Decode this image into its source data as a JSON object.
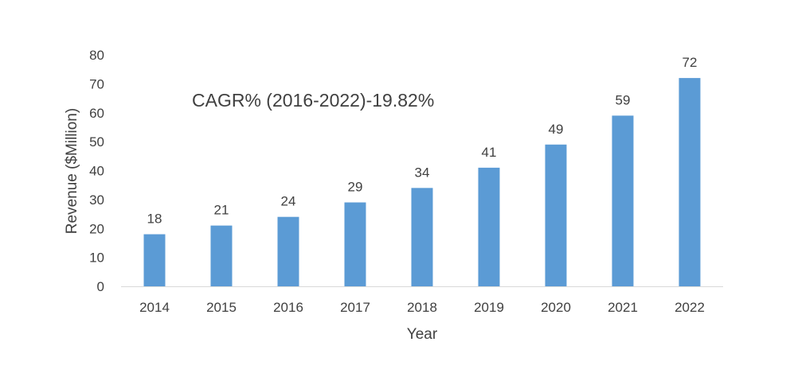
{
  "chart_data": {
    "type": "bar",
    "title": "",
    "categories": [
      "2014",
      "2015",
      "2016",
      "2017",
      "2018",
      "2019",
      "2020",
      "2021",
      "2022"
    ],
    "values": [
      18,
      21,
      24,
      29,
      34,
      41,
      49,
      59,
      72
    ],
    "data_labels": [
      "18",
      "21",
      "24",
      "29",
      "34",
      "41",
      "49",
      "59",
      "72"
    ],
    "xlabel": "Year",
    "ylabel": "Revenue ($Million)",
    "ylim": [
      0,
      80
    ],
    "yticks": [
      0,
      10,
      20,
      30,
      40,
      50,
      60,
      70,
      80
    ],
    "ytick_labels": [
      "0",
      "10",
      "20",
      "30",
      "40",
      "50",
      "60",
      "70",
      "80"
    ],
    "annotation": "CAGR% (2016-2022)-19.82%",
    "grid": false,
    "legend": "none",
    "bar_color": "#5b9bd5",
    "axis_color": "#d9d9d9"
  }
}
